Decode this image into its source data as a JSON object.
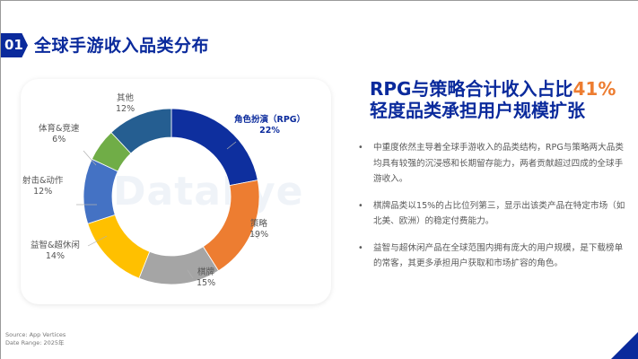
{
  "header": {
    "badge": "01",
    "title": "全球手游收入品类分布"
  },
  "headline": {
    "line1_prefix": "RPG与策略合计收入占比",
    "line1_accent": "41%",
    "line2": "轻度品类承担用户规模扩张"
  },
  "bullets": [
    {
      "marker": "•",
      "text": "中重度依然主导着全球手游收入的品类结构，RPG与策略两大品类均具有较强的沉浸感和长期留存能力，两者贡献超过四成的全球手游收入。"
    },
    {
      "marker": "•",
      "text": "棋牌品类以15%的占比位列第三，显示出该类产品在特定市场（如北美、欧洲）的稳定付费能力。"
    },
    {
      "marker": "•",
      "text": "益智与超休闲产品在全球范围内拥有庞大的用户规模，是下载榜单的常客，其更多承担用户获取和市场扩容的角色。"
    }
  ],
  "source": {
    "line1": "Source: App Vertices",
    "line2": "Date Range: 2025年"
  },
  "watermark": "DataEye",
  "colors": {
    "brand": "#0a2a9c",
    "accent": "#ed7d31"
  },
  "chart_data": {
    "type": "pie",
    "variant": "donut",
    "title": "全球手游收入品类分布",
    "categories": [
      "角色扮演（RPG）",
      "策略",
      "棋牌",
      "益智&超休闲",
      "射击&动作",
      "体育&竞速",
      "其他"
    ],
    "values": [
      22,
      19,
      15,
      14,
      12,
      6,
      12
    ],
    "unit": "%",
    "colors": [
      "#0e2f9e",
      "#ed7d31",
      "#a5a5a5",
      "#ffc000",
      "#4472c4",
      "#70ad47",
      "#255e91"
    ],
    "labels": [
      {
        "name": "角色扮演（RPG）",
        "value": "22%"
      },
      {
        "name": "策略",
        "value": "19%"
      },
      {
        "name": "棋牌",
        "value": "15%"
      },
      {
        "name": "益智&超休闲",
        "value": "14%"
      },
      {
        "name": "射击&动作",
        "value": "12%"
      },
      {
        "name": "体育&竞速",
        "value": "6%"
      },
      {
        "name": "其他",
        "value": "12%"
      }
    ],
    "start_angle_deg": 0,
    "direction": "clockwise",
    "legend": "none (direct labels)"
  }
}
